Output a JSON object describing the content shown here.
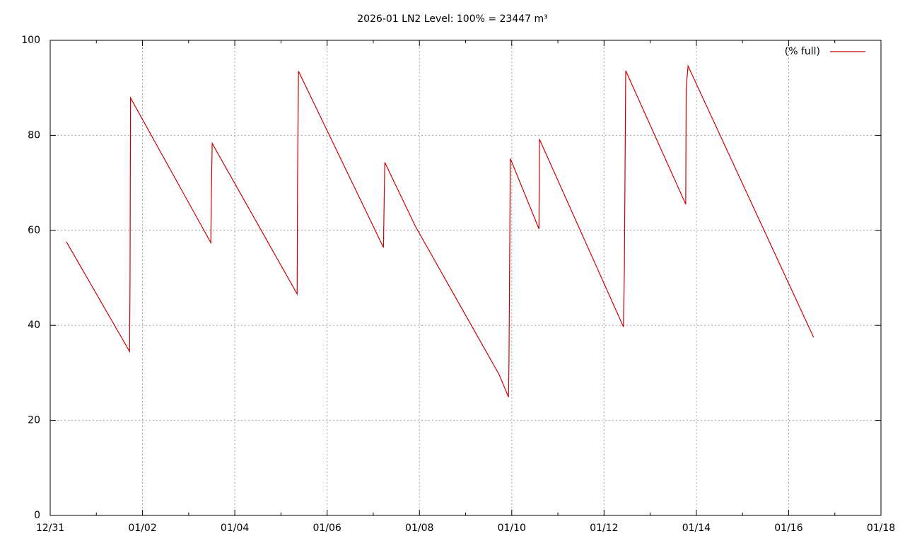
{
  "chart_data": {
    "type": "line",
    "title": "2026-01 LN2 Level: 100% = 23447 m³",
    "x": [
      0.35,
      1.72,
      1.73,
      1.74,
      3.48,
      3.49,
      3.51,
      5.35,
      5.36,
      5.38,
      7.22,
      7.25,
      7.91,
      9.73,
      9.93,
      9.94,
      9.97,
      10.59,
      10.6,
      12.42,
      12.44,
      12.47,
      13.77,
      13.78,
      13.82,
      16.54
    ],
    "series": [
      {
        "name": "(% full)",
        "color": "#cc0000",
        "values": [
          57.6,
          34.5,
          50.0,
          87.9,
          57.4,
          66.7,
          78.3,
          46.6,
          70.8,
          93.5,
          56.4,
          74.3,
          60.9,
          29.6,
          24.9,
          32,
          75.1,
          60.3,
          79.2,
          39.7,
          51.5,
          93.6,
          65.5,
          90,
          94.6,
          37.5
        ]
      }
    ],
    "xlim": [
      0,
      18
    ],
    "xticks": [
      {
        "value": 0,
        "label": "12/31"
      },
      {
        "value": 2,
        "label": "01/02"
      },
      {
        "value": 4,
        "label": "01/04"
      },
      {
        "value": 6,
        "label": "01/06"
      },
      {
        "value": 8,
        "label": "01/08"
      },
      {
        "value": 10,
        "label": "01/10"
      },
      {
        "value": 12,
        "label": "01/12"
      },
      {
        "value": 14,
        "label": "01/14"
      },
      {
        "value": 16,
        "label": "01/16"
      },
      {
        "value": 18,
        "label": "01/18"
      }
    ],
    "xminorticks": [
      1,
      3,
      5,
      7,
      9,
      11,
      13,
      15,
      17
    ],
    "ylim": [
      0,
      100
    ],
    "yticks": [
      0,
      20,
      40,
      60,
      80,
      100
    ],
    "grid": true,
    "legend": "top-right"
  }
}
